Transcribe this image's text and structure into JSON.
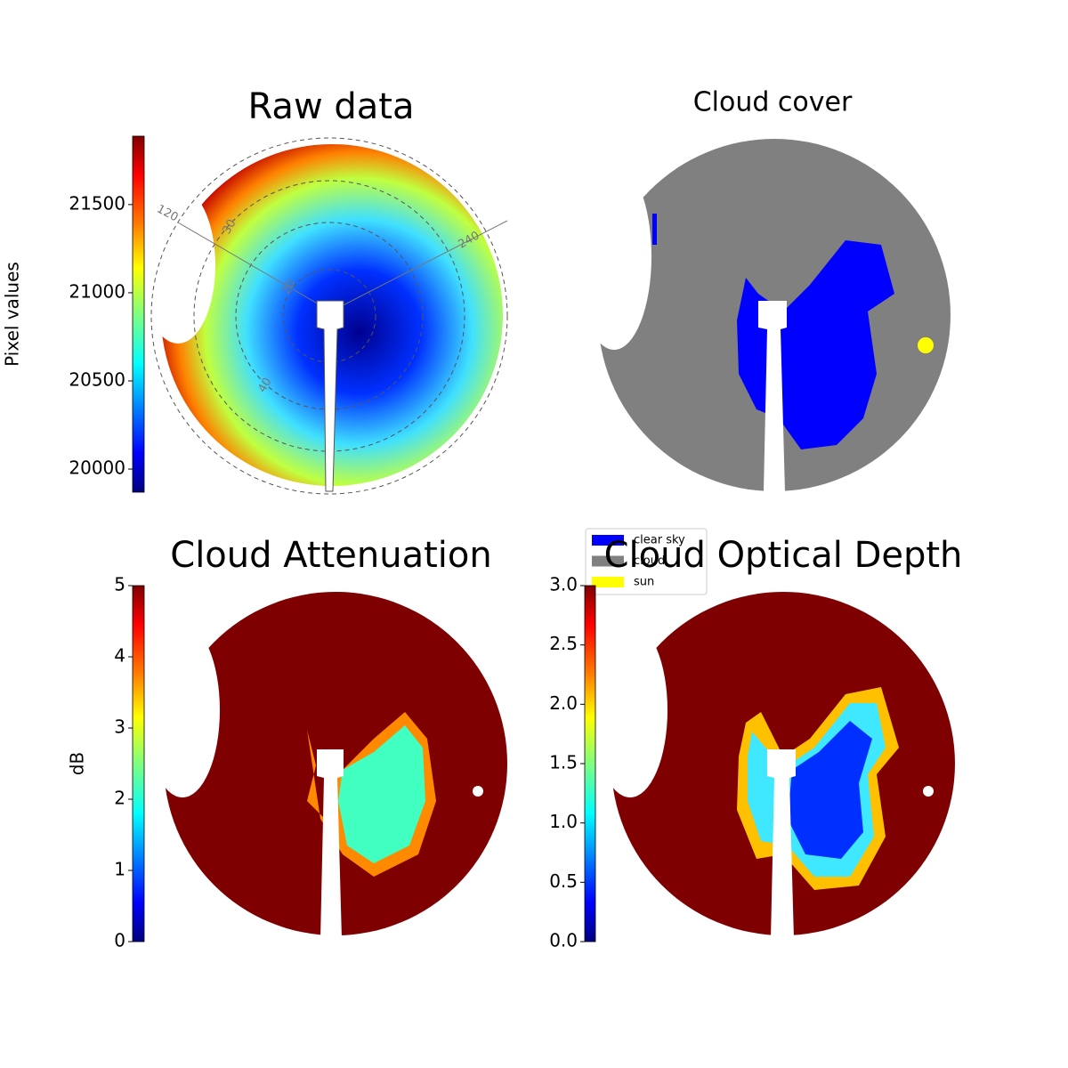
{
  "chart_data": [
    {
      "type": "image",
      "title": "Raw data",
      "colorbar_label": "Pixel values",
      "colormap": "jet",
      "ylim": [
        19869,
        21888
      ],
      "yticks": [
        20000,
        20500,
        21000,
        21500
      ],
      "polar_labels": [
        "120",
        "30",
        "20",
        "40",
        "240"
      ]
    },
    {
      "type": "image",
      "title": "Cloud cover",
      "legend": [
        {
          "name": "clear sky",
          "color": "#0000ff"
        },
        {
          "name": "cloud",
          "color": "#808080"
        },
        {
          "name": "sun",
          "color": "#ffff00"
        }
      ]
    },
    {
      "type": "image",
      "title": "Cloud Attenuation",
      "colorbar_label": "dB",
      "colormap": "jet",
      "ylim": [
        0,
        5
      ],
      "yticks": [
        0,
        1,
        2,
        3,
        4,
        5
      ]
    },
    {
      "type": "image",
      "title": "Cloud Optical Depth",
      "colormap": "jet",
      "ylim": [
        0,
        3
      ],
      "yticks": [
        {
          "value": 0,
          "label": "0.0"
        },
        0.5,
        {
          "value": 1,
          "label": "1.0"
        },
        1.5,
        {
          "value": 2,
          "label": "2.0"
        },
        2.5,
        {
          "value": 3,
          "label": "3.0"
        }
      ]
    }
  ]
}
